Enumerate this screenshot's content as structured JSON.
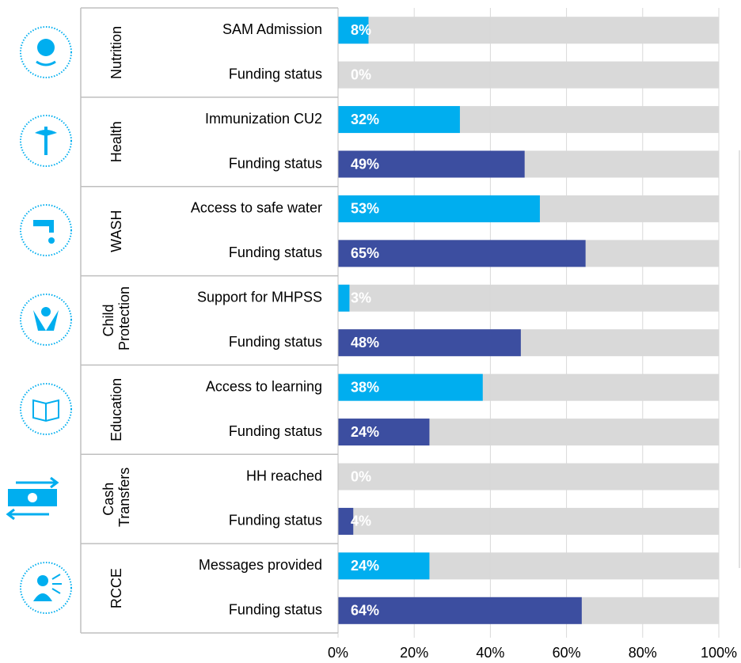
{
  "chart_data": {
    "type": "bar",
    "groups": [
      "Nutrition",
      "Health",
      "WASH",
      "Child Protection",
      "Education",
      "Cash Transfers",
      "RCCE"
    ],
    "categories": [
      "SAM Admission",
      "Funding status",
      "Immunization CU2",
      "Funding status",
      "Access to safe water",
      "Funding status",
      "Support for MHPSS",
      "Funding status",
      "Access to learning",
      "Funding status",
      "HH reached",
      "Funding status",
      "Messages provided",
      "Funding status"
    ],
    "values": [
      8,
      0,
      32,
      49,
      53,
      65,
      3,
      48,
      38,
      24,
      0,
      4,
      24,
      64
    ],
    "value_labels": [
      "8%",
      "0%",
      "32%",
      "49%",
      "53%",
      "65%",
      "3%",
      "48%",
      "38%",
      "24%",
      "0%",
      "4%",
      "24%",
      "64%"
    ],
    "colors": [
      "#00aeef",
      "#3c4ea0",
      "#00aeef",
      "#3c4ea0",
      "#00aeef",
      "#3c4ea0",
      "#00aeef",
      "#3c4ea0",
      "#00aeef",
      "#3c4ea0",
      "#00aeef",
      "#3c4ea0",
      "#00aeef",
      "#3c4ea0"
    ],
    "track_color": "#d9d9d9",
    "xlim": [
      0,
      100
    ],
    "xticks": [
      {
        "value": 0,
        "label": "0%"
      },
      {
        "value": 20,
        "label": "20%"
      },
      {
        "value": 40,
        "label": "40%"
      },
      {
        "value": 60,
        "label": "60%"
      },
      {
        "value": 80,
        "label": "80%"
      },
      {
        "value": 100,
        "label": "100%"
      }
    ],
    "grid": true
  }
}
